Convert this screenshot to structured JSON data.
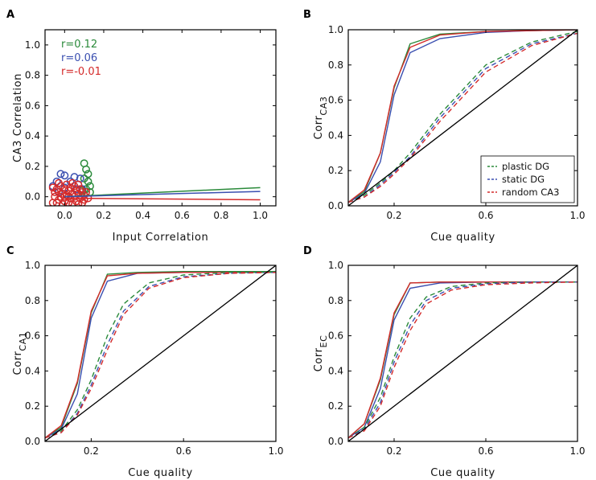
{
  "colors": {
    "plastic": "#2a8a3a",
    "static": "#3a4fb0",
    "random": "#d42a2a",
    "diagonal": "#000000"
  },
  "chart_data": [
    {
      "panel": "A",
      "type": "scatter",
      "xlabel": "Input Correlation",
      "ylabel": "CA3 Correlation",
      "xlim": [
        -0.1,
        1.08
      ],
      "ylim": [
        -0.06,
        1.1
      ],
      "xticks": [
        0.0,
        0.2,
        0.4,
        0.6,
        0.8,
        1.0
      ],
      "xticklabels": [
        "0.0",
        "0.2",
        "0.4",
        "0.6",
        "0.8",
        "1.0"
      ],
      "yticks": [
        0.0,
        0.2,
        0.4,
        0.6,
        0.8,
        1.0
      ],
      "yticklabels": [
        "0.0",
        "0.2",
        "0.4",
        "0.6",
        "0.8",
        "1.0"
      ],
      "annotations": [
        {
          "text": "r=0.12",
          "series": "plastic"
        },
        {
          "text": "r=0.06",
          "series": "static"
        },
        {
          "text": "r=-0.01",
          "series": "random"
        }
      ],
      "series": [
        {
          "key": "plastic",
          "fit": [
            [
              0.0,
              0.0
            ],
            [
              1.0,
              0.06
            ]
          ],
          "points": [
            [
              0.1,
              0.22
            ],
            [
              0.11,
              0.18
            ],
            [
              0.12,
              0.15
            ],
            [
              0.1,
              0.12
            ],
            [
              0.12,
              0.1
            ],
            [
              0.13,
              0.07
            ],
            [
              0.11,
              0.05
            ],
            [
              0.09,
              0.04
            ],
            [
              0.13,
              0.03
            ]
          ]
        },
        {
          "key": "static",
          "fit": [
            [
              0.0,
              0.0
            ],
            [
              1.0,
              0.035
            ]
          ],
          "points": [
            [
              -0.02,
              0.15
            ],
            [
              0.0,
              0.14
            ],
            [
              0.05,
              0.13
            ],
            [
              0.08,
              0.12
            ],
            [
              -0.04,
              0.1
            ],
            [
              0.03,
              0.1
            ],
            [
              0.07,
              0.08
            ],
            [
              -0.06,
              0.07
            ],
            [
              0.0,
              0.06
            ],
            [
              0.06,
              0.05
            ],
            [
              0.09,
              0.05
            ],
            [
              -0.03,
              0.03
            ]
          ]
        },
        {
          "key": "random",
          "fit": [
            [
              0.0,
              -0.01
            ],
            [
              1.0,
              -0.02
            ]
          ],
          "points": [
            [
              -0.06,
              0.06
            ],
            [
              -0.05,
              0.0
            ],
            [
              -0.06,
              -0.04
            ],
            [
              -0.04,
              0.05
            ],
            [
              -0.03,
              -0.02
            ],
            [
              -0.02,
              0.07
            ],
            [
              -0.01,
              0.02
            ],
            [
              -0.01,
              -0.05
            ],
            [
              0.0,
              0.05
            ],
            [
              0.0,
              -0.03
            ],
            [
              0.01,
              0.08
            ],
            [
              0.01,
              0.01
            ],
            [
              0.02,
              -0.04
            ],
            [
              0.02,
              0.04
            ],
            [
              0.03,
              0.06
            ],
            [
              0.03,
              -0.01
            ],
            [
              0.04,
              0.02
            ],
            [
              0.04,
              -0.05
            ],
            [
              0.05,
              0.07
            ],
            [
              0.05,
              0.0
            ],
            [
              0.06,
              0.04
            ],
            [
              0.06,
              -0.03
            ],
            [
              0.07,
              0.02
            ],
            [
              0.07,
              -0.05
            ],
            [
              0.08,
              0.05
            ],
            [
              0.08,
              -0.01
            ],
            [
              0.09,
              0.03
            ],
            [
              0.09,
              -0.04
            ],
            [
              0.1,
              0.01
            ],
            [
              0.1,
              -0.02
            ],
            [
              0.11,
              0.03
            ],
            [
              0.12,
              -0.01
            ],
            [
              -0.05,
              0.03
            ],
            [
              -0.04,
              -0.04
            ],
            [
              -0.02,
              0.0
            ],
            [
              0.0,
              0.0
            ],
            [
              0.02,
              0.0
            ],
            [
              -0.03,
              0.09
            ],
            [
              0.04,
              0.09
            ],
            [
              0.07,
              0.08
            ]
          ]
        }
      ]
    },
    {
      "panel": "B",
      "type": "line",
      "xlabel": "Cue quality",
      "ylabel_main": "Corr",
      "ylabel_sub": "CA3",
      "xlim": [
        0.0,
        1.0
      ],
      "ylim": [
        0.0,
        1.0
      ],
      "xticks": [
        0.2,
        0.6,
        1.0
      ],
      "xticklabels": [
        "0.2",
        "0.6",
        "1.0"
      ],
      "yticks": [
        0.0,
        0.2,
        0.4,
        0.6,
        0.8,
        1.0
      ],
      "yticklabels": [
        "0.0",
        "0.2",
        "0.4",
        "0.6",
        "0.8",
        "1.0"
      ],
      "legend": {
        "placement": "lower-right",
        "entries": [
          {
            "key": "plastic",
            "label": "plastic DG"
          },
          {
            "key": "static",
            "label": "static DG"
          },
          {
            "key": "random",
            "label": "random CA3"
          }
        ]
      },
      "series": [
        {
          "key": "plastic",
          "style": "solid",
          "x": [
            0,
            0.07,
            0.14,
            0.2,
            0.27,
            0.4,
            0.6,
            0.8,
            1.0
          ],
          "y": [
            0.02,
            0.08,
            0.3,
            0.67,
            0.92,
            0.975,
            0.99,
            0.995,
            1.0
          ]
        },
        {
          "key": "static",
          "style": "solid",
          "x": [
            0,
            0.07,
            0.14,
            0.2,
            0.27,
            0.4,
            0.6,
            0.8,
            1.0
          ],
          "y": [
            0.02,
            0.07,
            0.25,
            0.63,
            0.87,
            0.95,
            0.985,
            0.995,
            1.0
          ]
        },
        {
          "key": "random",
          "style": "solid",
          "x": [
            0,
            0.07,
            0.14,
            0.2,
            0.27,
            0.4,
            0.6,
            0.8,
            1.0
          ],
          "y": [
            0.02,
            0.09,
            0.3,
            0.68,
            0.9,
            0.97,
            0.99,
            0.995,
            1.0
          ]
        },
        {
          "key": "plastic",
          "style": "dashed",
          "x": [
            0,
            0.07,
            0.14,
            0.2,
            0.27,
            0.4,
            0.6,
            0.8,
            1.0
          ],
          "y": [
            0.02,
            0.06,
            0.13,
            0.2,
            0.3,
            0.52,
            0.8,
            0.93,
            0.99
          ]
        },
        {
          "key": "static",
          "style": "dashed",
          "x": [
            0,
            0.07,
            0.14,
            0.2,
            0.27,
            0.4,
            0.6,
            0.8,
            1.0
          ],
          "y": [
            0.02,
            0.05,
            0.12,
            0.19,
            0.28,
            0.5,
            0.78,
            0.92,
            0.98
          ]
        },
        {
          "key": "random",
          "style": "dashed",
          "x": [
            0,
            0.07,
            0.14,
            0.2,
            0.27,
            0.4,
            0.6,
            0.8,
            1.0
          ],
          "y": [
            0.02,
            0.05,
            0.11,
            0.18,
            0.27,
            0.48,
            0.76,
            0.91,
            0.98
          ]
        },
        {
          "key": "diagonal",
          "style": "solid",
          "x": [
            0,
            1.0
          ],
          "y": [
            0,
            1.0
          ]
        }
      ]
    },
    {
      "panel": "C",
      "type": "line",
      "xlabel": "Cue quality",
      "ylabel_main": "Corr",
      "ylabel_sub": "CA1",
      "xlim": [
        0.0,
        1.0
      ],
      "ylim": [
        0.0,
        1.0
      ],
      "xticks": [
        0.2,
        0.6,
        1.0
      ],
      "xticklabels": [
        "0.2",
        "0.6",
        "1.0"
      ],
      "yticks": [
        0.0,
        0.2,
        0.4,
        0.6,
        0.8,
        1.0
      ],
      "yticklabels": [
        "0.0",
        "0.2",
        "0.4",
        "0.6",
        "0.8",
        "1.0"
      ],
      "series": [
        {
          "key": "plastic",
          "style": "solid",
          "x": [
            0,
            0.07,
            0.14,
            0.2,
            0.27,
            0.4,
            0.6,
            0.8,
            1.0
          ],
          "y": [
            0.02,
            0.08,
            0.33,
            0.73,
            0.95,
            0.96,
            0.965,
            0.965,
            0.965
          ]
        },
        {
          "key": "static",
          "style": "solid",
          "x": [
            0,
            0.07,
            0.14,
            0.2,
            0.27,
            0.4,
            0.6,
            0.8,
            1.0
          ],
          "y": [
            0.02,
            0.07,
            0.27,
            0.7,
            0.91,
            0.955,
            0.96,
            0.96,
            0.96
          ]
        },
        {
          "key": "random",
          "style": "solid",
          "x": [
            0,
            0.07,
            0.14,
            0.2,
            0.27,
            0.4,
            0.6,
            0.8,
            1.0
          ],
          "y": [
            0.02,
            0.09,
            0.34,
            0.74,
            0.94,
            0.955,
            0.96,
            0.96,
            0.96
          ]
        },
        {
          "key": "plastic",
          "style": "dashed",
          "x": [
            0,
            0.07,
            0.14,
            0.2,
            0.27,
            0.34,
            0.45,
            0.6,
            0.8,
            1.0
          ],
          "y": [
            0.02,
            0.06,
            0.18,
            0.35,
            0.6,
            0.78,
            0.9,
            0.945,
            0.96,
            0.96
          ]
        },
        {
          "key": "static",
          "style": "dashed",
          "x": [
            0,
            0.07,
            0.14,
            0.2,
            0.27,
            0.34,
            0.45,
            0.6,
            0.8,
            1.0
          ],
          "y": [
            0.02,
            0.05,
            0.16,
            0.32,
            0.55,
            0.74,
            0.88,
            0.935,
            0.955,
            0.96
          ]
        },
        {
          "key": "random",
          "style": "dashed",
          "x": [
            0,
            0.07,
            0.14,
            0.2,
            0.27,
            0.34,
            0.45,
            0.6,
            0.8,
            1.0
          ],
          "y": [
            0.02,
            0.05,
            0.15,
            0.3,
            0.52,
            0.72,
            0.87,
            0.93,
            0.955,
            0.96
          ]
        },
        {
          "key": "diagonal",
          "style": "solid",
          "x": [
            0,
            1.0
          ],
          "y": [
            0,
            1.0
          ]
        }
      ]
    },
    {
      "panel": "D",
      "type": "line",
      "xlabel": "Cue quality",
      "ylabel_main": "Corr",
      "ylabel_sub": "EC",
      "xlim": [
        0.0,
        1.0
      ],
      "ylim": [
        0.0,
        1.0
      ],
      "xticks": [
        0.2,
        0.6,
        1.0
      ],
      "xticklabels": [
        "0.2",
        "0.6",
        "1.0"
      ],
      "yticks": [
        0.0,
        0.2,
        0.4,
        0.6,
        0.8,
        1.0
      ],
      "yticklabels": [
        "0.0",
        "0.2",
        "0.4",
        "0.6",
        "0.8",
        "1.0"
      ],
      "series": [
        {
          "key": "plastic",
          "style": "solid",
          "x": [
            0,
            0.07,
            0.14,
            0.2,
            0.27,
            0.4,
            0.6,
            0.8,
            1.0
          ],
          "y": [
            0.02,
            0.1,
            0.35,
            0.72,
            0.9,
            0.905,
            0.905,
            0.905,
            0.905
          ]
        },
        {
          "key": "static",
          "style": "solid",
          "x": [
            0,
            0.07,
            0.14,
            0.2,
            0.27,
            0.4,
            0.6,
            0.8,
            1.0
          ],
          "y": [
            0.02,
            0.08,
            0.3,
            0.69,
            0.87,
            0.9,
            0.905,
            0.905,
            0.905
          ]
        },
        {
          "key": "random",
          "style": "solid",
          "x": [
            0,
            0.07,
            0.14,
            0.2,
            0.27,
            0.4,
            0.6,
            0.8,
            1.0
          ],
          "y": [
            0.02,
            0.1,
            0.36,
            0.73,
            0.9,
            0.905,
            0.905,
            0.905,
            0.905
          ]
        },
        {
          "key": "plastic",
          "style": "dashed",
          "x": [
            0,
            0.07,
            0.14,
            0.2,
            0.27,
            0.34,
            0.45,
            0.6,
            0.8,
            1.0
          ],
          "y": [
            0.02,
            0.08,
            0.25,
            0.48,
            0.7,
            0.82,
            0.88,
            0.9,
            0.905,
            0.905
          ]
        },
        {
          "key": "static",
          "style": "dashed",
          "x": [
            0,
            0.07,
            0.14,
            0.2,
            0.27,
            0.34,
            0.45,
            0.6,
            0.8,
            1.0
          ],
          "y": [
            0.02,
            0.07,
            0.22,
            0.45,
            0.66,
            0.8,
            0.87,
            0.895,
            0.905,
            0.905
          ]
        },
        {
          "key": "random",
          "style": "dashed",
          "x": [
            0,
            0.07,
            0.14,
            0.2,
            0.27,
            0.34,
            0.45,
            0.6,
            0.8,
            1.0
          ],
          "y": [
            0.02,
            0.06,
            0.2,
            0.42,
            0.63,
            0.78,
            0.86,
            0.89,
            0.9,
            0.905
          ]
        },
        {
          "key": "diagonal",
          "style": "solid",
          "x": [
            0,
            1.0
          ],
          "y": [
            0,
            1.0
          ]
        }
      ]
    }
  ]
}
